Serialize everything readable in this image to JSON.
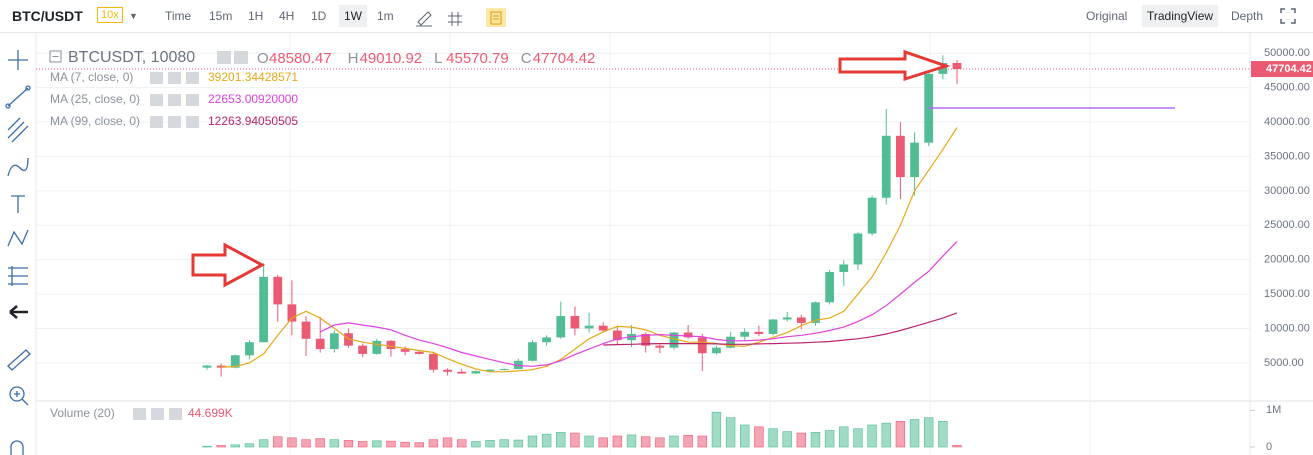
{
  "toolbar": {
    "symbol": "BTC/USDT",
    "leverage": "10x",
    "intervals": [
      "Time",
      "15m",
      "1H",
      "4H",
      "1D",
      "1W",
      "1m"
    ],
    "active_interval": "1W",
    "views": [
      "Original",
      "TradingView",
      "Depth"
    ],
    "active_view": "TradingView"
  },
  "chart_data": {
    "type": "candlestick",
    "title": "BTCUSDT, 10080",
    "ohlc_labels": [
      "O",
      "H",
      "L",
      "C"
    ],
    "up_color": "#52bd94",
    "down_color": "#eb5a73",
    "candles": [
      [
        4300,
        4700,
        4000,
        4600
      ],
      [
        4600,
        4900,
        3000,
        4300
      ],
      [
        4300,
        6200,
        4200,
        6100
      ],
      [
        6100,
        8300,
        5500,
        8000
      ],
      [
        8000,
        19500,
        8000,
        17500
      ],
      [
        17500,
        17800,
        11000,
        13500
      ],
      [
        13500,
        17000,
        9000,
        11000
      ],
      [
        11000,
        11800,
        6000,
        8500
      ],
      [
        8500,
        11700,
        6500,
        7000
      ],
      [
        7000,
        9700,
        6500,
        9300
      ],
      [
        9300,
        10000,
        7200,
        7500
      ],
      [
        7500,
        7800,
        5800,
        6300
      ],
      [
        6300,
        8500,
        6200,
        8200
      ],
      [
        8200,
        8300,
        5900,
        7000
      ],
      [
        7000,
        7400,
        6100,
        6600
      ],
      [
        6600,
        6800,
        6200,
        6300
      ],
      [
        6300,
        6500,
        3600,
        4000
      ],
      [
        4000,
        4200,
        3150,
        3700
      ],
      [
        3700,
        4100,
        3400,
        3450
      ],
      [
        3450,
        3900,
        3350,
        3800
      ],
      [
        3800,
        4100,
        3700,
        4000
      ],
      [
        4000,
        4200,
        3900,
        4100
      ],
      [
        4100,
        5600,
        4050,
        5300
      ],
      [
        5300,
        8300,
        5200,
        8000
      ],
      [
        8000,
        9000,
        7500,
        8700
      ],
      [
        8700,
        13900,
        8500,
        11800
      ],
      [
        11800,
        13200,
        9000,
        10000
      ],
      [
        10000,
        12300,
        9400,
        10400
      ],
      [
        10400,
        10900,
        9500,
        9700
      ],
      [
        9700,
        10200,
        7700,
        8300
      ],
      [
        8300,
        10500,
        7300,
        9200
      ],
      [
        9200,
        9400,
        6500,
        7500
      ],
      [
        7500,
        7700,
        6400,
        7200
      ],
      [
        7200,
        9500,
        6900,
        9400
      ],
      [
        9400,
        10500,
        8500,
        8700
      ],
      [
        8700,
        9200,
        3800,
        6400
      ],
      [
        6400,
        7500,
        6200,
        7200
      ],
      [
        7200,
        9500,
        7100,
        8800
      ],
      [
        8800,
        10000,
        8200,
        9500
      ],
      [
        9500,
        10400,
        8900,
        9200
      ],
      [
        9200,
        11400,
        9000,
        11300
      ],
      [
        11300,
        12400,
        11000,
        11600
      ],
      [
        11600,
        12000,
        9900,
        10800
      ],
      [
        10800,
        13900,
        10400,
        13800
      ],
      [
        13800,
        18500,
        13500,
        18200
      ],
      [
        18200,
        19900,
        16200,
        19300
      ],
      [
        19300,
        24000,
        18500,
        23800
      ],
      [
        23800,
        29300,
        23500,
        29000
      ],
      [
        29000,
        41900,
        28000,
        38000
      ],
      [
        38000,
        40000,
        28800,
        32000
      ],
      [
        32000,
        38500,
        29300,
        37000
      ],
      [
        37000,
        49000,
        36500,
        47000
      ],
      [
        47000,
        49700,
        46200,
        48580.47
      ],
      [
        48580.47,
        49010.92,
        45570.79,
        47704.42
      ]
    ],
    "ylim": [
      -400,
      51200
    ],
    "yticks": [
      {
        "value": 5000,
        "label": "5000.00"
      },
      {
        "value": 10000,
        "label": "10000.00"
      },
      {
        "value": 15000,
        "label": "15000.00"
      },
      {
        "value": 20000,
        "label": "20000.00"
      },
      {
        "value": 25000,
        "label": "25000.00"
      },
      {
        "value": 30000,
        "label": "30000.00"
      },
      {
        "value": 35000,
        "label": "35000.00"
      },
      {
        "value": 40000,
        "label": "40000.00"
      },
      {
        "value": 45000,
        "label": "45000.00"
      },
      {
        "value": 50000,
        "label": "50000.00"
      }
    ],
    "grid": true,
    "indicators": [
      {
        "name": "MA (7, close, 0)",
        "color": "#e6a817",
        "value_label": "39201.34428571",
        "values": [
          null,
          4400,
          4450,
          5000,
          6300,
          9000,
          11500,
          12500,
          11500,
          10000,
          8500,
          8000,
          7700,
          7400,
          7100,
          6800,
          6500,
          5600,
          4800,
          4100,
          3700,
          3700,
          3850,
          4000,
          4500,
          5500,
          7000,
          8500,
          9500,
          10300,
          10200,
          9800,
          9000,
          8500,
          8000,
          8000,
          7800,
          7500,
          7400,
          8000,
          8700,
          9400,
          10400,
          11200,
          11500,
          12500,
          15000,
          17500,
          21000,
          25000,
          30000,
          33000,
          36000,
          39201.34428571
        ]
      },
      {
        "name": "MA (25, close, 0)",
        "color": "#e040e0",
        "value_label": "22653.00920000",
        "values": [
          null,
          null,
          null,
          null,
          null,
          null,
          null,
          null,
          9500,
          10500,
          10800,
          10500,
          10200,
          9800,
          9000,
          8300,
          7800,
          7200,
          6500,
          6000,
          5500,
          5000,
          4600,
          4500,
          4700,
          5300,
          6200,
          7000,
          7800,
          8500,
          8800,
          9000,
          9100,
          9000,
          8900,
          8800,
          8400,
          8200,
          8200,
          8300,
          8500,
          8800,
          9000,
          9300,
          9700,
          10200,
          11000,
          12000,
          13300,
          15000,
          16700,
          18300,
          20500,
          22653.0092
        ]
      },
      {
        "name": "MA (99, close, 0)",
        "color": "#b8246e",
        "value_label": "12263.94050505",
        "values": [
          null,
          null,
          null,
          null,
          null,
          null,
          null,
          null,
          null,
          null,
          null,
          null,
          null,
          null,
          null,
          null,
          null,
          null,
          null,
          null,
          null,
          null,
          null,
          null,
          null,
          null,
          null,
          null,
          7600,
          7650,
          7700,
          7750,
          7800,
          7800,
          7800,
          7800,
          7750,
          7700,
          7700,
          7750,
          7800,
          7850,
          7900,
          8000,
          8100,
          8300,
          8500,
          8800,
          9200,
          9700,
          10300,
          10900,
          11500,
          12263.94050505
        ]
      }
    ],
    "volume": {
      "title": "Volume (20)",
      "value_label": "44.699K",
      "ylim": [
        0,
        1200000
      ],
      "yticks": [
        0,
        {
          "value": 1000000,
          "label": "1M"
        }
      ],
      "values": [
        20000,
        40000,
        60000,
        90000,
        200000,
        280000,
        250000,
        200000,
        230000,
        200000,
        180000,
        150000,
        170000,
        160000,
        130000,
        120000,
        200000,
        250000,
        200000,
        150000,
        180000,
        200000,
        190000,
        300000,
        350000,
        400000,
        380000,
        300000,
        250000,
        300000,
        330000,
        280000,
        250000,
        300000,
        320000,
        300000,
        950000,
        800000,
        600000,
        550000,
        500000,
        420000,
        380000,
        400000,
        450000,
        550000,
        500000,
        600000,
        650000,
        700000,
        750000,
        800000,
        700000,
        44699
      ]
    }
  }
}
